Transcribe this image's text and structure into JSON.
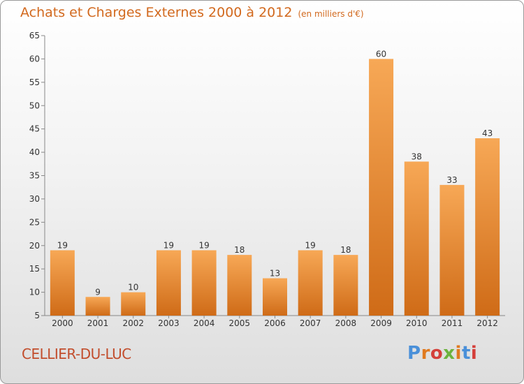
{
  "title": "Achats et Charges Externes 2000 à 2012",
  "subtitle": "(en milliers d'€)",
  "place": "CELLIER-DU-LUC",
  "logo": {
    "text": "Proxiti",
    "colors": [
      "#4a90d9",
      "#e07a1f",
      "#d43f3a",
      "#6cb33f",
      "#e07a1f",
      "#4a90d9",
      "#d43f3a"
    ]
  },
  "colors": {
    "bar_top": "#f7a856",
    "bar_bottom": "#cf6b17",
    "title": "#d2691e",
    "place": "#c24d2c"
  },
  "chart_data": {
    "type": "bar",
    "categories": [
      "2000",
      "2001",
      "2002",
      "2003",
      "2004",
      "2005",
      "2006",
      "2007",
      "2008",
      "2009",
      "2010",
      "2011",
      "2012"
    ],
    "values": [
      19,
      9,
      10,
      19,
      19,
      18,
      13,
      19,
      18,
      60,
      38,
      33,
      43
    ],
    "ylim": [
      5,
      65
    ],
    "yticks": [
      5,
      10,
      15,
      20,
      25,
      30,
      35,
      40,
      45,
      50,
      55,
      60,
      65
    ],
    "grid": false,
    "data_labels": true
  }
}
